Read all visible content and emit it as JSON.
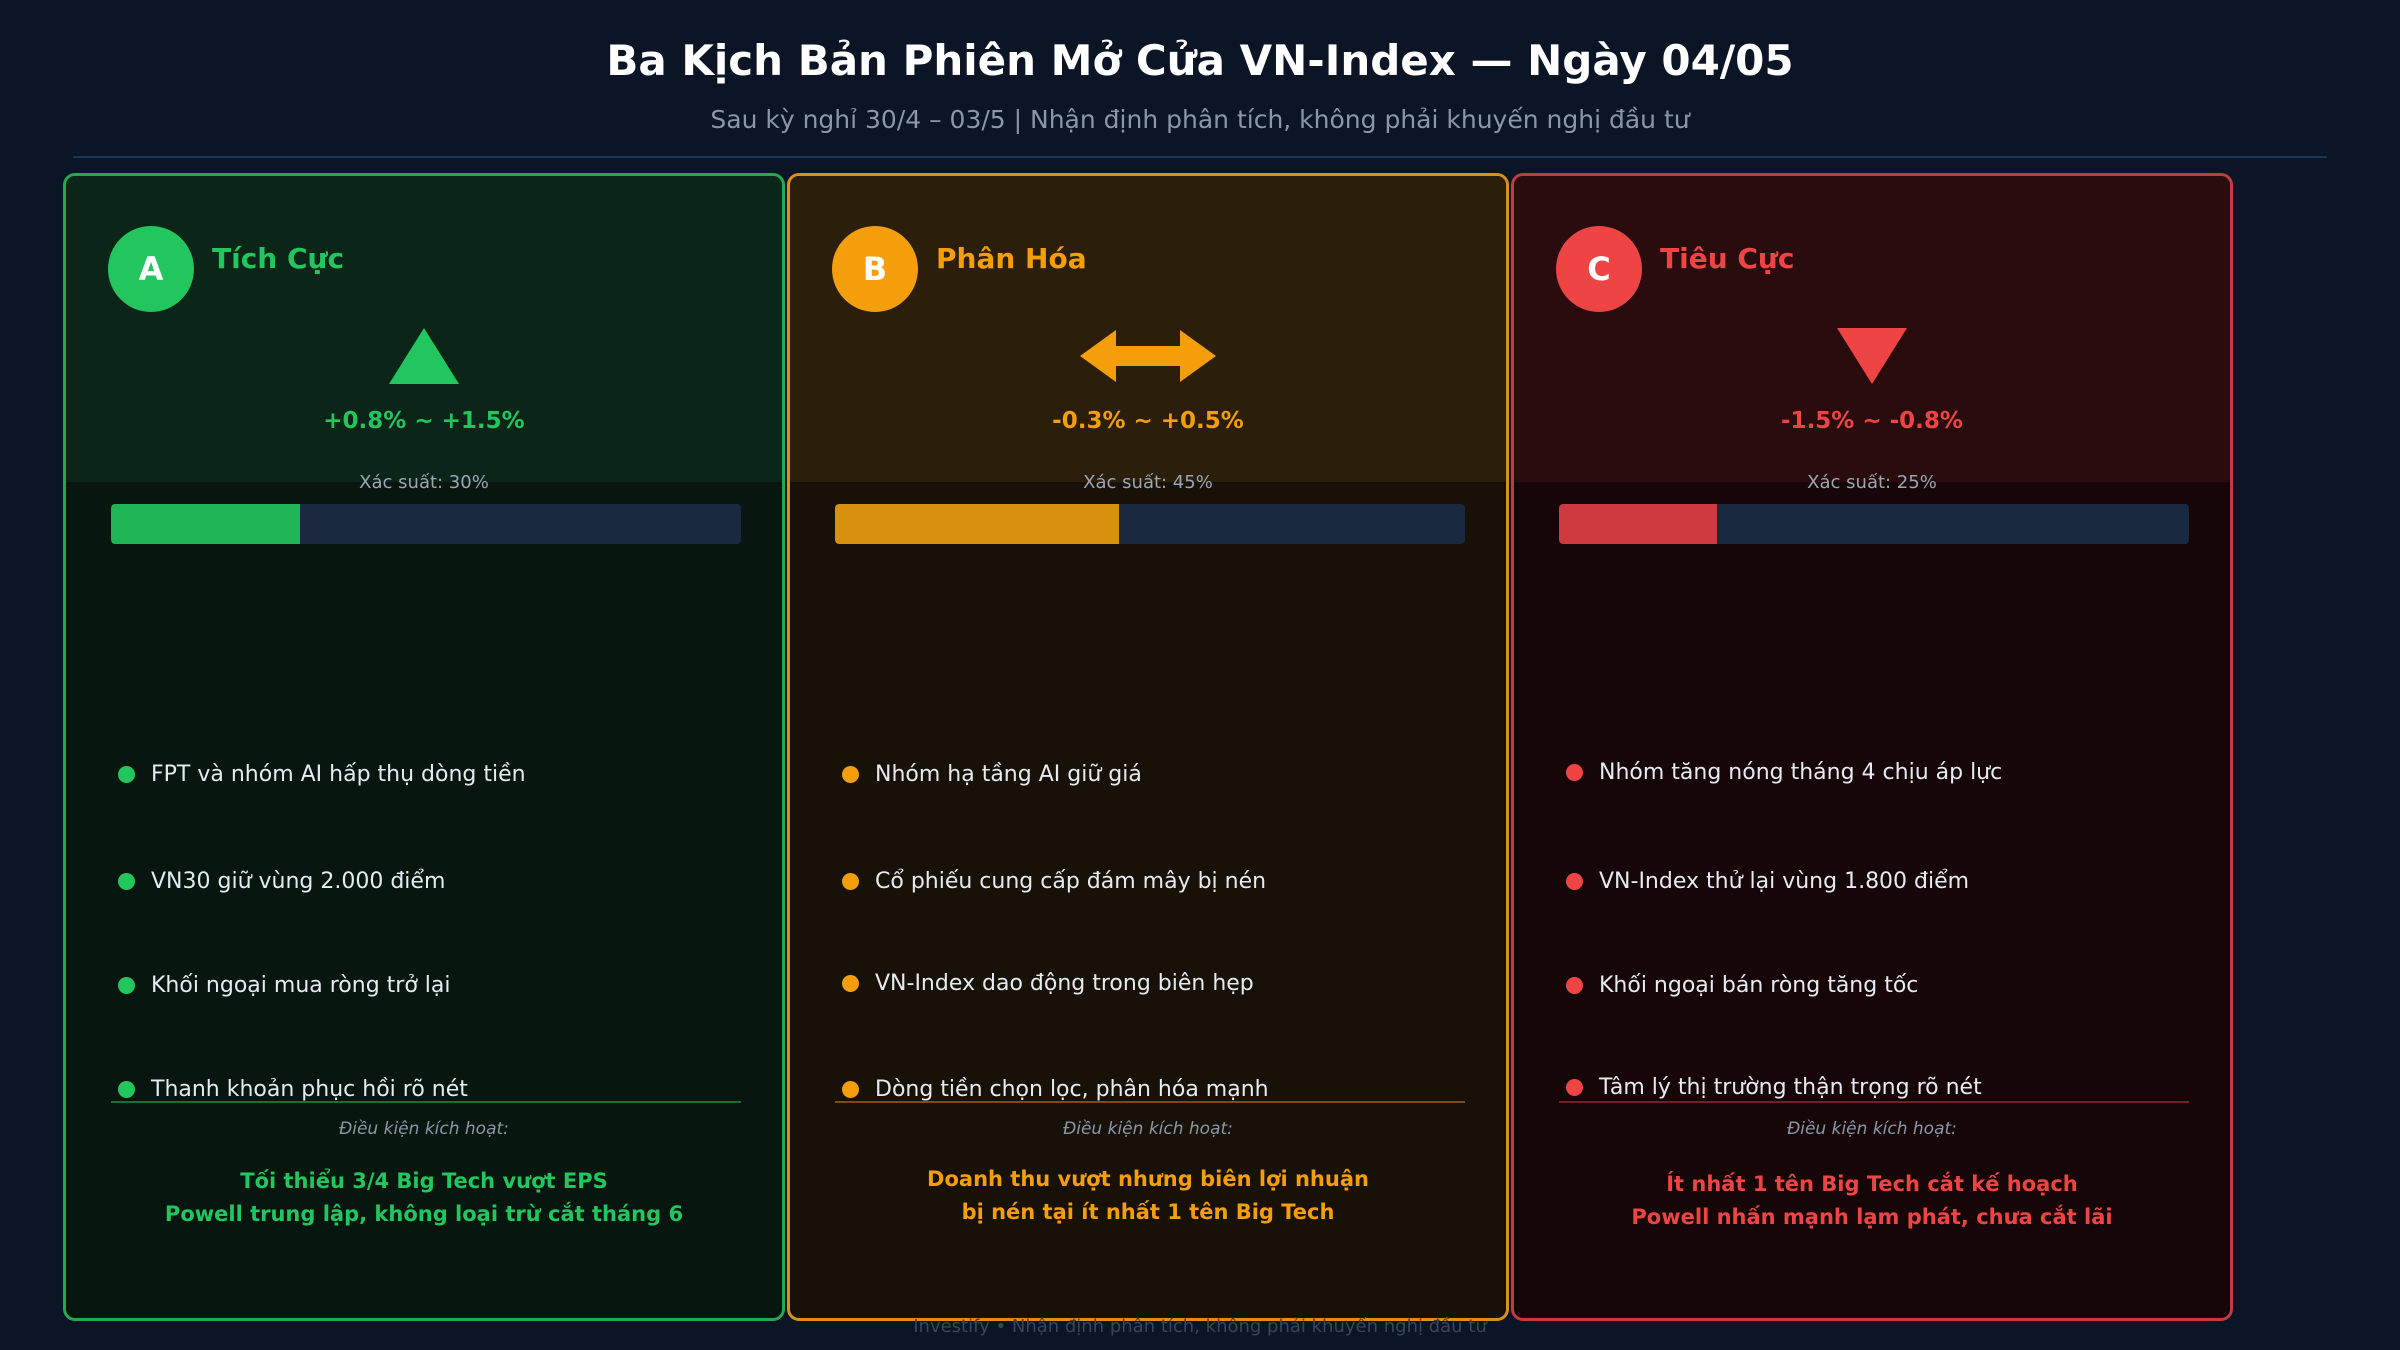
{
  "header": {
    "title": "Ba Kịch Bản Phiên Mở Cửa VN-Index — Ngày 04/05",
    "subtitle": "Sau kỳ nghỉ 30/4 – 03/5 | Nhận định phân tích, không phải khuyến nghị đầu tư"
  },
  "scenarios": [
    {
      "letter": "A",
      "name": "Tích Cực",
      "symbol": "up-triangle-icon",
      "range": "+0.8% ~ +1.5%",
      "probability_label": "Xác suất: 30%",
      "probability": 0.3,
      "colors": {
        "accent": "#22c55e",
        "border": "#22a84f",
        "top_bg": "#0b2619",
        "body_bg": "#07170f",
        "bar": "#1fb455",
        "line": "#1f6b3a"
      },
      "bullets": [
        "FPT và nhóm AI hấp thụ dòng tiền",
        "VN30 giữ vùng 2.000 điểm",
        "Khối ngoại mua ròng trở lại",
        "Thanh khoản phục hồi rõ nét"
      ],
      "condition_label": "Điều kiện kích hoạt:",
      "conditions": [
        "Tối thiểu 3/4 Big Tech vượt EPS",
        "Powell trung lập, không loại trừ cắt tháng 6"
      ]
    },
    {
      "letter": "B",
      "name": "Phân Hóa",
      "symbol": "double-arrow-icon",
      "range": "-0.3% ~ +0.5%",
      "probability_label": "Xác suất: 45%",
      "probability": 0.45,
      "colors": {
        "accent": "#f59e0b",
        "border": "#d9911a",
        "top_bg": "#2b1e0b",
        "body_bg": "#181107",
        "bar": "#d9920f",
        "line": "#7a4a1a"
      },
      "bullets": [
        "Nhóm hạ tầng AI giữ giá",
        "Cổ phiếu cung cấp đám mây bị nén",
        "VN-Index dao động trong biên hẹp",
        "Dòng tiền chọn lọc, phân hóa mạnh"
      ],
      "condition_label": "Điều kiện kích hoạt:",
      "conditions": [
        "Doanh thu vượt nhưng biên lợi nhuận",
        "bị nén tại ít nhất 1 tên Big Tech"
      ]
    },
    {
      "letter": "C",
      "name": "Tiêu Cực",
      "symbol": "down-triangle-icon",
      "range": "-1.5% ~ -0.8%",
      "probability_label": "Xác suất: 25%",
      "probability": 0.25,
      "colors": {
        "accent": "#ef4444",
        "border": "#c23b43",
        "top_bg": "#2a0c0e",
        "body_bg": "#160607",
        "bar": "#cf3a40",
        "line": "#6e2228"
      },
      "bullets": [
        "Nhóm tăng nóng tháng 4 chịu áp lực",
        "VN-Index thử lại vùng 1.800 điểm",
        "Khối ngoại bán ròng tăng tốc",
        "Tâm lý thị trường thận trọng rõ nét"
      ],
      "condition_label": "Điều kiện kích hoạt:",
      "conditions": [
        "Ít nhất 1 tên Big Tech cắt kế hoạch",
        "Powell nhấn mạnh lạm phát, chưa cắt lãi"
      ]
    }
  ],
  "footer": "Investify  •  Nhận định phân tích, không phải khuyến nghị đầu tư"
}
